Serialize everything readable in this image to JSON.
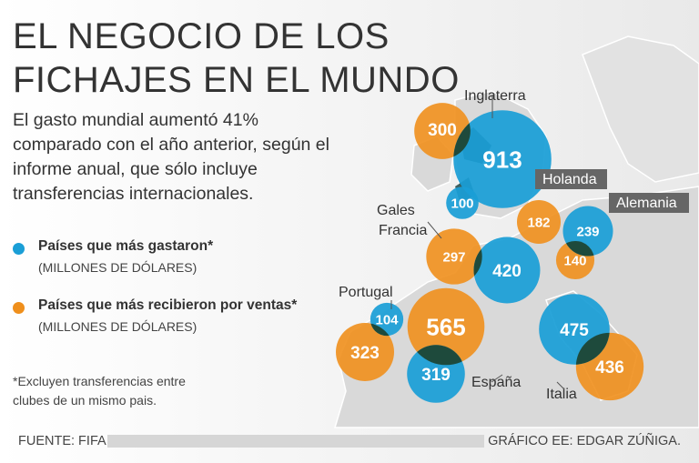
{
  "title_lines": [
    "EL NEGOCIO DE LOS",
    "FICHAJES EN EL MUNDO"
  ],
  "subtitle": "El gasto mundial aumentó 41% comparado con el año anterior, según el informe anual, que sólo incluye transferencias internacionales.",
  "legend": [
    {
      "label": "Países que más gastaron*",
      "unit": "(MILLONES DE DÓLARES)",
      "color": "#1a9ed6"
    },
    {
      "label": "Países que más recibieron por ventas*",
      "unit": "(MILLONES DE DÓLARES)",
      "color": "#ef8f1c"
    }
  ],
  "note": "*Excluyen transferencias entre clubes de un mismo pais.",
  "source": "FUENTE: FIFA",
  "credit": "GRÁFICO EE: EDGAR ZÚÑIGA.",
  "chart_data": {
    "type": "bubble-map",
    "title": "EL NEGOCIO DE LOS FICHAJES EN EL MUNDO",
    "units": "Millones de dólares",
    "series": [
      {
        "name": "Países que más gastaron",
        "color": "#1a9ed6",
        "points": [
          {
            "country": "Inglaterra",
            "value": 913
          },
          {
            "country": "Gales",
            "value": 100
          },
          {
            "country": "Francia",
            "value": 420
          },
          {
            "country": "Alemania",
            "value": 239
          },
          {
            "country": "Portugal",
            "value": 104
          },
          {
            "country": "España",
            "value": 319
          },
          {
            "country": "Italia",
            "value": 475
          }
        ]
      },
      {
        "name": "Países que más recibieron por ventas",
        "color": "#ef8f1c",
        "points": [
          {
            "country": "Inglaterra",
            "value": 300
          },
          {
            "country": "Holanda",
            "value": 182
          },
          {
            "country": "Alemania",
            "value": 140
          },
          {
            "country": "Francia",
            "value": 297
          },
          {
            "country": "Portugal",
            "value": 323
          },
          {
            "country": "España",
            "value": 565
          },
          {
            "country": "Italia",
            "value": 436
          }
        ]
      }
    ],
    "country_labels": [
      "Inglaterra",
      "Gales",
      "Francia",
      "Holanda",
      "Alemania",
      "Portugal",
      "España",
      "Italia"
    ]
  }
}
